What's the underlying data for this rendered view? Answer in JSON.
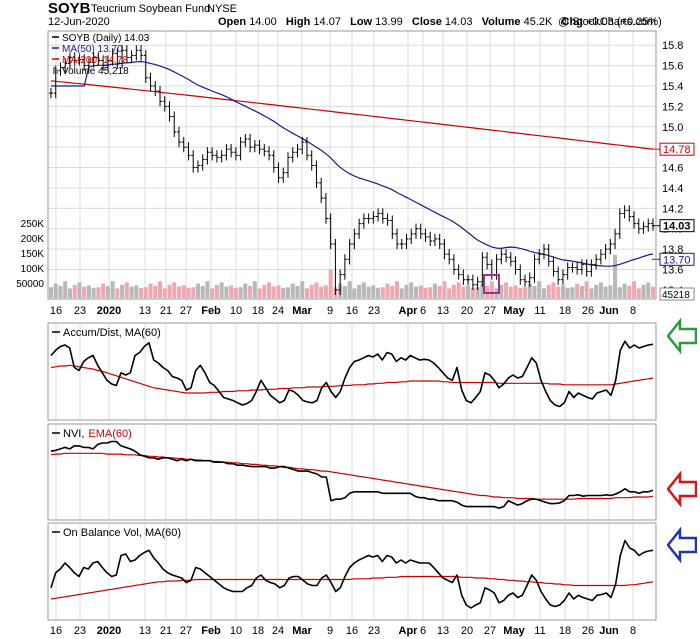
{
  "header": {
    "symbol": "SOYB",
    "name": "Teucrium Soybean Fund",
    "exchange": "NYSE",
    "date": "12-Jun-2020",
    "open_label": "Open",
    "open": "14.00",
    "high_label": "High",
    "high": "14.07",
    "low_label": "Low",
    "low": "13.99",
    "close_label": "Close",
    "close": "14.03",
    "volume_label": "Volume",
    "volume": "45.2K",
    "chg_label": "Chg",
    "chg": "+0.03 (+0.25%)",
    "watermark": "@ StockCharts.com"
  },
  "colors": {
    "price": "#000000",
    "ma50": "#1a1a8c",
    "ma200": "#cc0000",
    "volume_up": "#b8b8b8",
    "volume_down": "#f0a8b0",
    "highlight_box": "#a0308a",
    "arrow_green": "#2a9a3a",
    "arrow_red": "#dd1111",
    "arrow_blue": "#2233aa"
  },
  "chart_data": {
    "type": "line",
    "x_labels": [
      "16",
      "23",
      "2020",
      "13",
      "21",
      "27",
      "Feb",
      "10",
      "18",
      "24",
      "Mar",
      "9",
      "16",
      "23",
      "Apr",
      "6",
      "13",
      "20",
      "27",
      "May",
      "11",
      "18",
      "26",
      "Jun",
      "8"
    ],
    "price_panel": {
      "legend": [
        {
          "label": "SOYB (Daily) 14.03"
        },
        {
          "label": "MA(50) 13.70"
        },
        {
          "label": "MA(200) 14.78"
        },
        {
          "label": "Volume 45,218"
        }
      ],
      "y_ticks": [
        "15.8",
        "15.6",
        "15.4",
        "15.2",
        "15.0",
        "14.8",
        "14.6",
        "14.4",
        "14.2",
        "14.0",
        "13.8",
        "13.6",
        "13.4"
      ],
      "ylim": [
        13.35,
        15.9
      ],
      "volume_ticks": [
        "250K",
        "200K",
        "150K",
        "100K",
        "50000"
      ],
      "price_tags": [
        {
          "label": "14.78",
          "value": 14.78,
          "color": "#cc0000"
        },
        {
          "label": "14.03",
          "value": 14.03,
          "color": "#000000"
        },
        {
          "label": "13.70",
          "value": 13.7,
          "color": "#1a1a8c"
        }
      ],
      "volume_tag": "45218",
      "close": [
        15.33,
        15.55,
        15.58,
        15.62,
        15.68,
        15.65,
        15.66,
        15.6,
        15.63,
        15.68,
        15.65,
        15.6,
        15.65,
        15.72,
        15.62,
        15.75,
        15.68,
        15.7,
        15.75,
        15.7,
        15.48,
        15.4,
        15.35,
        15.25,
        15.2,
        15.1,
        14.95,
        14.85,
        14.8,
        14.72,
        14.6,
        14.62,
        14.68,
        14.75,
        14.72,
        14.7,
        14.72,
        14.78,
        14.75,
        14.72,
        14.85,
        14.88,
        14.8,
        14.82,
        14.78,
        14.76,
        14.72,
        14.6,
        14.5,
        14.55,
        14.7,
        14.75,
        14.78,
        14.85,
        14.72,
        14.62,
        14.45,
        14.3,
        14.1,
        13.85,
        13.4,
        13.55,
        13.7,
        13.85,
        13.95,
        14.05,
        14.1,
        14.1,
        14.12,
        14.15,
        14.1,
        14.08,
        13.95,
        13.85,
        13.85,
        13.9,
        13.95,
        14.0,
        13.95,
        13.92,
        13.88,
        13.9,
        13.85,
        13.75,
        13.7,
        13.6,
        13.55,
        13.5,
        13.5,
        13.45,
        13.48,
        13.72,
        13.65,
        13.55,
        13.7,
        13.75,
        13.72,
        13.68,
        13.6,
        13.5,
        13.48,
        13.52,
        13.7,
        13.75,
        13.8,
        13.68,
        13.58,
        13.5,
        13.55,
        13.62,
        13.62,
        13.6,
        13.65,
        13.58,
        13.65,
        13.7,
        13.75,
        13.8,
        13.85,
        13.95,
        14.15,
        14.18,
        14.12,
        14.05,
        14.0,
        14.02,
        14.05,
        14.03
      ]
    },
    "ad_panel": {
      "legend": "Accum/Dist, MA(60)",
      "line_color": "#000000",
      "ma_color": "#cc0000",
      "values": [
        0.78,
        0.85,
        0.9,
        0.92,
        0.88,
        0.62,
        0.58,
        0.7,
        0.75,
        0.78,
        0.65,
        0.55,
        0.45,
        0.4,
        0.38,
        0.55,
        0.52,
        0.55,
        0.78,
        0.82,
        0.9,
        0.95,
        0.72,
        0.68,
        0.62,
        0.58,
        0.5,
        0.48,
        0.45,
        0.32,
        0.35,
        0.58,
        0.65,
        0.55,
        0.42,
        0.38,
        0.3,
        0.22,
        0.2,
        0.18,
        0.15,
        0.12,
        0.14,
        0.18,
        0.3,
        0.45,
        0.35,
        0.25,
        0.2,
        0.15,
        0.18,
        0.32,
        0.3,
        0.25,
        0.18,
        0.16,
        0.15,
        0.18,
        0.35,
        0.42,
        0.3,
        0.22,
        0.3,
        0.48,
        0.62,
        0.7,
        0.72,
        0.75,
        0.78,
        0.76,
        0.8,
        0.72,
        0.82,
        0.8,
        0.7,
        0.75,
        0.72,
        0.78,
        0.75,
        0.72,
        0.73,
        0.72,
        0.68,
        0.62,
        0.55,
        0.48,
        0.45,
        0.62,
        0.32,
        0.18,
        0.15,
        0.22,
        0.3,
        0.55,
        0.52,
        0.45,
        0.35,
        0.4,
        0.48,
        0.52,
        0.48,
        0.5,
        0.62,
        0.75,
        0.68,
        0.45,
        0.3,
        0.18,
        0.12,
        0.1,
        0.15,
        0.3,
        0.22,
        0.28,
        0.25,
        0.22,
        0.2,
        0.28,
        0.3,
        0.32,
        0.25,
        0.45,
        0.85,
        0.97,
        0.88,
        0.92,
        0.88,
        0.9,
        0.92,
        0.93
      ],
      "ma": [
        0.62,
        0.63,
        0.64,
        0.64,
        0.65,
        0.64,
        0.63,
        0.62,
        0.61,
        0.6,
        0.58,
        0.57,
        0.55,
        0.53,
        0.51,
        0.49,
        0.47,
        0.45,
        0.43,
        0.41,
        0.39,
        0.37,
        0.35,
        0.34,
        0.33,
        0.32,
        0.31,
        0.3,
        0.29,
        0.28,
        0.28,
        0.28,
        0.28,
        0.28,
        0.29,
        0.29,
        0.29,
        0.3,
        0.3,
        0.3,
        0.31,
        0.31,
        0.31,
        0.32,
        0.32,
        0.32,
        0.33,
        0.33,
        0.33,
        0.34,
        0.34,
        0.34,
        0.35,
        0.35,
        0.35,
        0.36,
        0.36,
        0.36,
        0.36,
        0.37,
        0.37,
        0.37,
        0.38,
        0.38,
        0.38,
        0.39,
        0.39,
        0.39,
        0.4,
        0.4,
        0.41,
        0.41,
        0.42,
        0.42,
        0.42,
        0.43,
        0.43,
        0.44,
        0.44,
        0.44,
        0.44,
        0.44,
        0.44,
        0.44,
        0.43,
        0.43,
        0.42,
        0.42,
        0.42,
        0.42,
        0.42,
        0.42,
        0.42,
        0.42,
        0.42,
        0.42,
        0.41,
        0.41,
        0.41,
        0.41,
        0.41,
        0.41,
        0.41,
        0.41,
        0.41,
        0.41,
        0.41,
        0.4,
        0.4,
        0.4,
        0.39,
        0.39,
        0.39,
        0.39,
        0.39,
        0.39,
        0.39,
        0.39,
        0.39,
        0.39,
        0.39,
        0.4,
        0.41,
        0.42,
        0.43,
        0.44,
        0.45,
        0.46,
        0.47,
        0.48
      ]
    },
    "nvi_panel": {
      "legend": "NVI,",
      "legend_ma": "EMA(60)",
      "line_color": "#000000",
      "ma_color": "#cc0000",
      "values": [
        0.85,
        0.86,
        0.88,
        0.9,
        0.88,
        0.92,
        0.92,
        0.9,
        0.9,
        0.88,
        0.94,
        0.96,
        0.96,
        0.98,
        0.98,
        0.92,
        0.9,
        0.88,
        0.85,
        0.8,
        0.78,
        0.76,
        0.76,
        0.74,
        0.76,
        0.76,
        0.74,
        0.72,
        0.74,
        0.72,
        0.74,
        0.72,
        0.72,
        0.72,
        0.72,
        0.7,
        0.7,
        0.7,
        0.68,
        0.68,
        0.66,
        0.66,
        0.65,
        0.64,
        0.64,
        0.64,
        0.64,
        0.62,
        0.62,
        0.64,
        0.64,
        0.62,
        0.6,
        0.58,
        0.58,
        0.58,
        0.56,
        0.54,
        0.5,
        0.5,
        0.18,
        0.2,
        0.2,
        0.22,
        0.28,
        0.3,
        0.3,
        0.3,
        0.3,
        0.3,
        0.3,
        0.28,
        0.28,
        0.28,
        0.28,
        0.28,
        0.28,
        0.28,
        0.24,
        0.22,
        0.22,
        0.2,
        0.2,
        0.18,
        0.18,
        0.18,
        0.18,
        0.16,
        0.12,
        0.1,
        0.1,
        0.1,
        0.1,
        0.1,
        0.1,
        0.1,
        0.08,
        0.1,
        0.18,
        0.15,
        0.12,
        0.14,
        0.18,
        0.2,
        0.2,
        0.18,
        0.16,
        0.14,
        0.14,
        0.15,
        0.18,
        0.25,
        0.25,
        0.26,
        0.24,
        0.25,
        0.25,
        0.25,
        0.25,
        0.26,
        0.25,
        0.27,
        0.3,
        0.34,
        0.3,
        0.3,
        0.28,
        0.3,
        0.3,
        0.32
      ],
      "ma": [
        0.8,
        0.81,
        0.81,
        0.82,
        0.82,
        0.82,
        0.82,
        0.82,
        0.82,
        0.82,
        0.82,
        0.82,
        0.81,
        0.81,
        0.81,
        0.81,
        0.8,
        0.8,
        0.8,
        0.79,
        0.79,
        0.78,
        0.78,
        0.77,
        0.77,
        0.76,
        0.76,
        0.75,
        0.75,
        0.74,
        0.74,
        0.73,
        0.73,
        0.72,
        0.72,
        0.71,
        0.71,
        0.7,
        0.7,
        0.69,
        0.69,
        0.68,
        0.68,
        0.67,
        0.67,
        0.66,
        0.66,
        0.65,
        0.65,
        0.64,
        0.63,
        0.63,
        0.62,
        0.61,
        0.61,
        0.6,
        0.6,
        0.59,
        0.58,
        0.58,
        0.57,
        0.56,
        0.55,
        0.54,
        0.53,
        0.52,
        0.51,
        0.5,
        0.49,
        0.48,
        0.47,
        0.46,
        0.45,
        0.44,
        0.43,
        0.42,
        0.41,
        0.4,
        0.39,
        0.38,
        0.37,
        0.36,
        0.35,
        0.34,
        0.33,
        0.32,
        0.31,
        0.3,
        0.29,
        0.28,
        0.27,
        0.26,
        0.25,
        0.25,
        0.24,
        0.23,
        0.23,
        0.22,
        0.22,
        0.22,
        0.21,
        0.21,
        0.21,
        0.21,
        0.2,
        0.2,
        0.2,
        0.2,
        0.2,
        0.2,
        0.2,
        0.2,
        0.2,
        0.21,
        0.21,
        0.21,
        0.21,
        0.21,
        0.21,
        0.21,
        0.21,
        0.22,
        0.22,
        0.22,
        0.22,
        0.23,
        0.23,
        0.23,
        0.23,
        0.24
      ]
    },
    "obv_panel": {
      "legend": "On Balance Vol, MA(60)",
      "line_color": "#000000",
      "ma_color": "#cc0000",
      "values": [
        0.35,
        0.55,
        0.6,
        0.68,
        0.62,
        0.55,
        0.5,
        0.62,
        0.6,
        0.68,
        0.7,
        0.62,
        0.55,
        0.5,
        0.52,
        0.78,
        0.8,
        0.7,
        0.72,
        0.78,
        0.82,
        0.85,
        0.75,
        0.68,
        0.6,
        0.55,
        0.52,
        0.5,
        0.48,
        0.42,
        0.45,
        0.62,
        0.6,
        0.55,
        0.5,
        0.45,
        0.4,
        0.35,
        0.32,
        0.3,
        0.3,
        0.3,
        0.35,
        0.38,
        0.48,
        0.52,
        0.45,
        0.42,
        0.4,
        0.35,
        0.38,
        0.48,
        0.5,
        0.5,
        0.45,
        0.4,
        0.38,
        0.38,
        0.48,
        0.52,
        0.42,
        0.3,
        0.35,
        0.5,
        0.62,
        0.68,
        0.72,
        0.75,
        0.78,
        0.76,
        0.78,
        0.7,
        0.78,
        0.76,
        0.68,
        0.72,
        0.68,
        0.72,
        0.7,
        0.68,
        0.68,
        0.68,
        0.62,
        0.55,
        0.48,
        0.45,
        0.42,
        0.52,
        0.25,
        0.12,
        0.08,
        0.12,
        0.15,
        0.35,
        0.32,
        0.28,
        0.15,
        0.18,
        0.25,
        0.28,
        0.22,
        0.25,
        0.38,
        0.52,
        0.45,
        0.3,
        0.2,
        0.12,
        0.1,
        0.12,
        0.18,
        0.28,
        0.2,
        0.25,
        0.22,
        0.2,
        0.18,
        0.25,
        0.26,
        0.28,
        0.22,
        0.4,
        0.78,
        0.98,
        0.88,
        0.85,
        0.78,
        0.82,
        0.84,
        0.85
      ],
      "ma": [
        0.2,
        0.21,
        0.22,
        0.23,
        0.24,
        0.25,
        0.26,
        0.27,
        0.28,
        0.29,
        0.3,
        0.31,
        0.32,
        0.33,
        0.34,
        0.35,
        0.36,
        0.37,
        0.38,
        0.39,
        0.4,
        0.41,
        0.42,
        0.43,
        0.43,
        0.44,
        0.44,
        0.44,
        0.45,
        0.45,
        0.45,
        0.46,
        0.46,
        0.46,
        0.46,
        0.46,
        0.46,
        0.46,
        0.46,
        0.46,
        0.46,
        0.46,
        0.46,
        0.46,
        0.46,
        0.46,
        0.46,
        0.46,
        0.46,
        0.46,
        0.46,
        0.46,
        0.46,
        0.46,
        0.46,
        0.46,
        0.46,
        0.46,
        0.46,
        0.46,
        0.46,
        0.46,
        0.46,
        0.46,
        0.46,
        0.47,
        0.47,
        0.47,
        0.47,
        0.48,
        0.48,
        0.48,
        0.49,
        0.49,
        0.49,
        0.5,
        0.5,
        0.5,
        0.5,
        0.5,
        0.5,
        0.5,
        0.5,
        0.5,
        0.5,
        0.5,
        0.5,
        0.5,
        0.49,
        0.49,
        0.49,
        0.48,
        0.48,
        0.48,
        0.47,
        0.47,
        0.46,
        0.46,
        0.45,
        0.45,
        0.44,
        0.44,
        0.43,
        0.43,
        0.42,
        0.42,
        0.41,
        0.41,
        0.4,
        0.4,
        0.39,
        0.39,
        0.38,
        0.38,
        0.38,
        0.38,
        0.38,
        0.38,
        0.38,
        0.38,
        0.38,
        0.38,
        0.38,
        0.38,
        0.39,
        0.39,
        0.4,
        0.41,
        0.42,
        0.43
      ]
    }
  }
}
